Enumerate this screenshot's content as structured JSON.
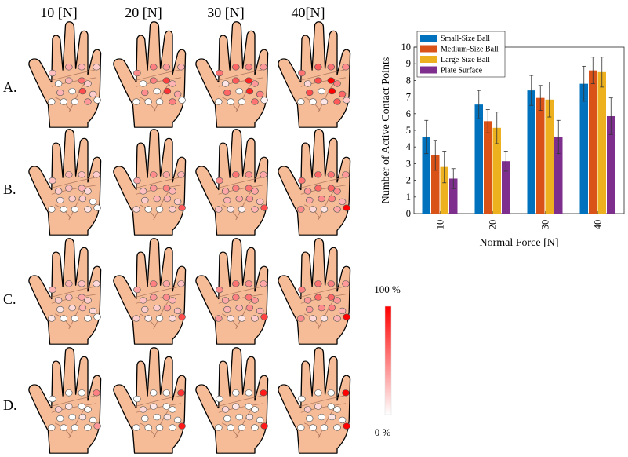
{
  "force_labels": [
    "10 [N]",
    "20 [N]",
    "30 [N]",
    "40[N]"
  ],
  "row_labels": [
    "A.",
    "B.",
    "C.",
    "D."
  ],
  "colorbar": {
    "max_label": "100 %",
    "min_label": "0 %",
    "max_color": "#ff0000",
    "min_color": "#ffffff"
  },
  "colors": {
    "skin": "#f5bc97",
    "skin_outline": "#000000",
    "crease": "#b07860"
  },
  "heatmaps": [
    [
      [
        0.25,
        0.35,
        0.3,
        0.2,
        0.0,
        0.3,
        0.55,
        0.2,
        0.3,
        0.0,
        0.7,
        0.2,
        0.0,
        0.0,
        0.0,
        0.4,
        0.0
      ],
      [
        0.45,
        0.5,
        0.4,
        0.3,
        0.0,
        0.5,
        0.75,
        0.3,
        0.45,
        0.0,
        0.8,
        0.35,
        0.0,
        0.0,
        0.0,
        0.5,
        0.0
      ],
      [
        0.55,
        0.6,
        0.5,
        0.4,
        0.1,
        0.65,
        0.85,
        0.4,
        0.6,
        0.0,
        0.85,
        0.5,
        0.0,
        0.0,
        0.0,
        0.55,
        0.05
      ],
      [
        0.55,
        0.65,
        0.55,
        0.45,
        0.15,
        0.7,
        1.0,
        0.5,
        0.7,
        0.0,
        1.0,
        0.6,
        0.0,
        0.0,
        0.1,
        0.65,
        0.2
      ]
    ],
    [
      [
        0.25,
        0.3,
        0.25,
        0.2,
        0.2,
        0.25,
        0.3,
        0.15,
        0.1,
        0.2,
        0.2,
        0.0,
        0.0,
        0.0,
        0.0,
        0.1,
        0.0
      ],
      [
        0.35,
        0.45,
        0.35,
        0.3,
        0.25,
        0.4,
        0.5,
        0.3,
        0.2,
        0.3,
        0.3,
        0.2,
        0.15,
        0.0,
        0.0,
        0.2,
        0.65
      ],
      [
        0.45,
        0.55,
        0.45,
        0.35,
        0.35,
        0.5,
        0.55,
        0.35,
        0.3,
        0.35,
        0.4,
        0.25,
        0.25,
        0.1,
        0.05,
        0.3,
        0.7
      ],
      [
        0.55,
        0.6,
        0.55,
        0.4,
        0.4,
        0.6,
        0.6,
        0.45,
        0.35,
        0.45,
        0.5,
        0.3,
        0.45,
        0.15,
        0.1,
        0.35,
        1.0
      ]
    ],
    [
      [
        0.3,
        0.3,
        0.25,
        0.15,
        0.2,
        0.25,
        0.35,
        0.2,
        0.1,
        0.15,
        0.3,
        0.15,
        0.1,
        0.0,
        0.0,
        0.0,
        0.0
      ],
      [
        0.35,
        0.5,
        0.35,
        0.25,
        0.25,
        0.4,
        0.45,
        0.3,
        0.2,
        0.2,
        0.4,
        0.25,
        0.2,
        0.05,
        0.0,
        0.15,
        0.7
      ],
      [
        0.45,
        0.55,
        0.45,
        0.35,
        0.35,
        0.5,
        0.55,
        0.4,
        0.3,
        0.3,
        0.45,
        0.3,
        0.4,
        0.1,
        0.1,
        0.2,
        0.75
      ],
      [
        0.5,
        0.55,
        0.5,
        0.4,
        0.4,
        0.6,
        0.6,
        0.4,
        0.4,
        0.45,
        0.5,
        0.3,
        0.45,
        0.15,
        0.1,
        0.3,
        1.0
      ]
    ],
    [
      [
        0.0,
        0.0,
        0.0,
        0.5,
        0.2,
        0.1,
        0.0,
        0.0,
        0.0,
        0.0,
        0.1,
        0.0,
        0.0,
        0.0,
        0.0,
        0.0,
        0.4
      ],
      [
        0.0,
        0.0,
        0.0,
        0.8,
        0.15,
        0.1,
        0.0,
        0.0,
        0.0,
        0.0,
        0.1,
        0.0,
        0.0,
        0.0,
        0.0,
        0.0,
        0.9
      ],
      [
        0.0,
        0.0,
        0.0,
        0.9,
        0.15,
        0.1,
        0.0,
        0.0,
        0.0,
        0.0,
        0.1,
        0.0,
        0.0,
        0.0,
        0.0,
        0.0,
        0.9
      ],
      [
        0.0,
        0.0,
        0.0,
        1.0,
        0.2,
        0.15,
        0.0,
        0.0,
        0.0,
        0.0,
        0.1,
        0.0,
        0.0,
        0.0,
        0.0,
        0.0,
        1.0
      ]
    ]
  ],
  "chart_data": {
    "type": "bar",
    "title": "",
    "xlabel": "Normal Force [N]",
    "ylabel": "Number of Active Contact Points",
    "categories": [
      "10",
      "20",
      "30",
      "40"
    ],
    "ylim": [
      0,
      10
    ],
    "yticks": [
      0,
      1,
      2,
      3,
      4,
      5,
      6,
      7,
      8,
      9,
      10
    ],
    "grid": false,
    "legend_position": "top-left",
    "error_bars": true,
    "series": [
      {
        "name": "Small-Size Ball",
        "color": "#0072bd",
        "values": [
          4.6,
          6.55,
          7.4,
          7.8
        ],
        "errors": [
          1.0,
          0.85,
          0.9,
          1.05
        ]
      },
      {
        "name": "Medium-Size Ball",
        "color": "#d95319",
        "values": [
          3.5,
          5.55,
          6.95,
          8.6
        ],
        "errors": [
          0.9,
          0.7,
          0.75,
          0.8
        ]
      },
      {
        "name": "Large-Size Ball",
        "color": "#edb120",
        "values": [
          2.8,
          5.15,
          6.85,
          8.5
        ],
        "errors": [
          0.95,
          0.95,
          1.05,
          0.9
        ]
      },
      {
        "name": "Plate Surface",
        "color": "#7e2f8e",
        "values": [
          2.1,
          3.15,
          4.6,
          5.85
        ],
        "errors": [
          0.6,
          0.6,
          1.0,
          1.1
        ]
      }
    ]
  }
}
